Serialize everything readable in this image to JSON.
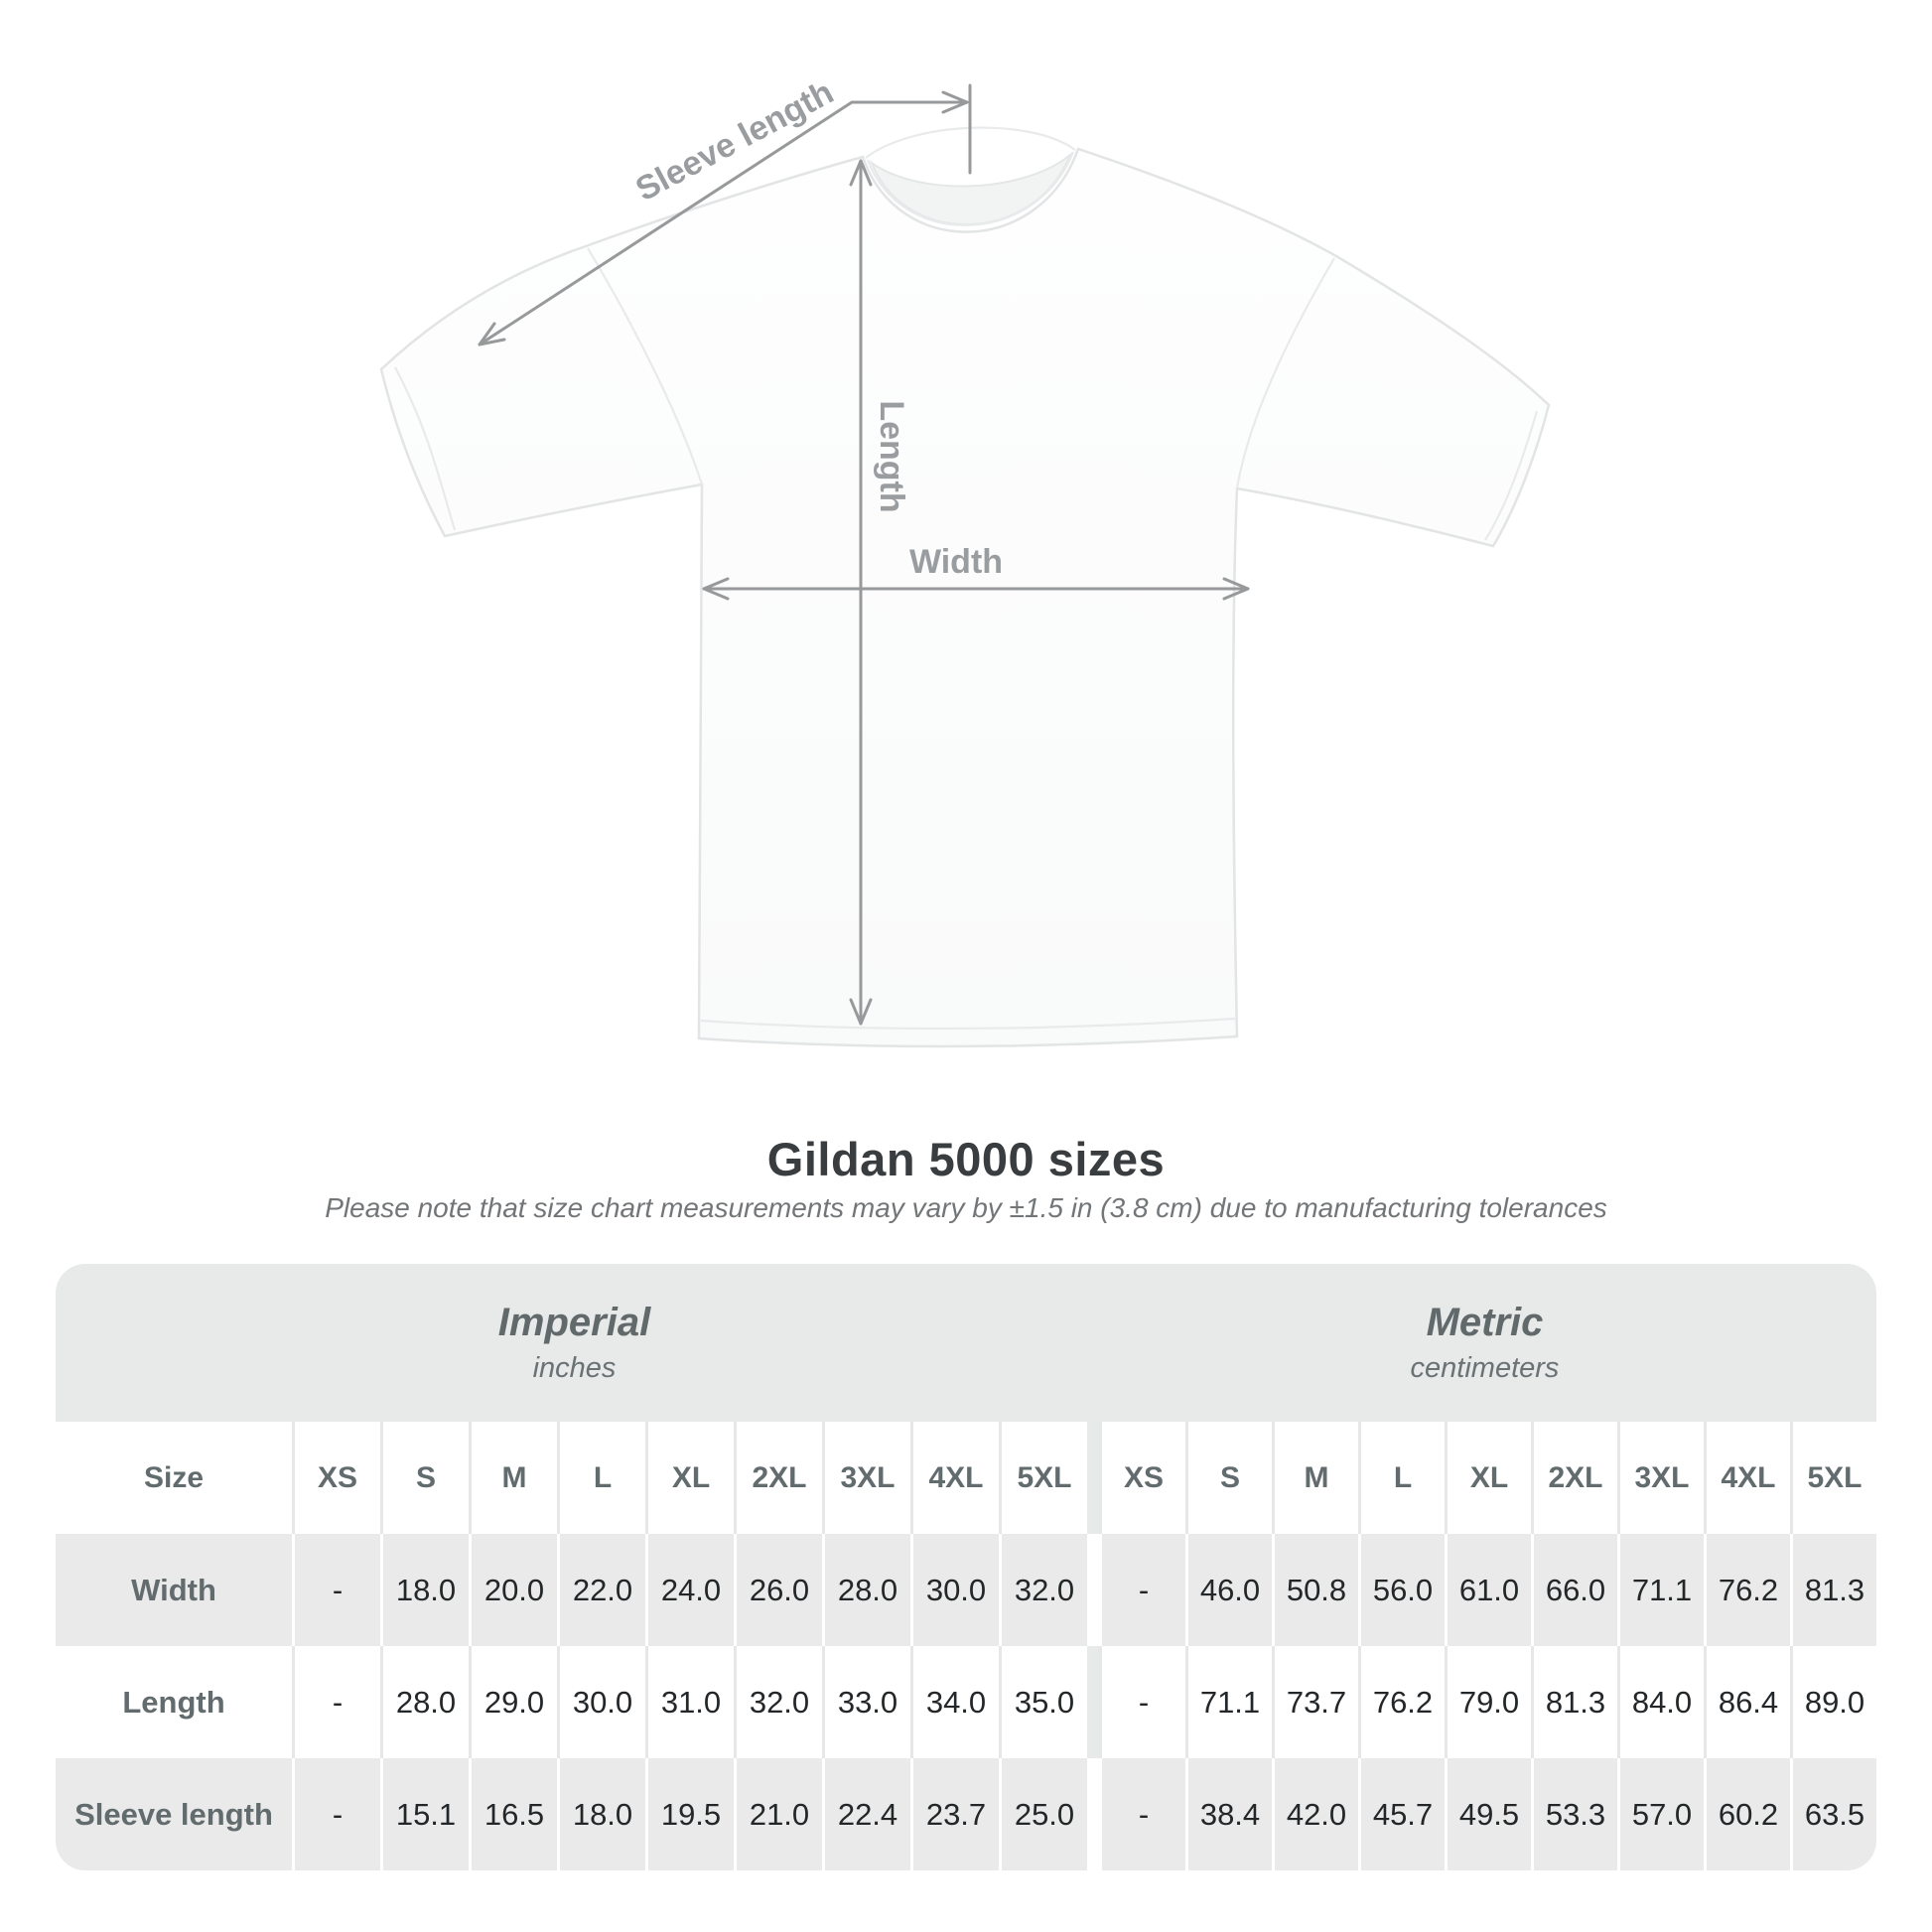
{
  "diagram": {
    "alt": "white crew-neck t-shirt front view with measurement arrows",
    "labels": {
      "sleeve_length": "Sleeve length",
      "length": "Length",
      "width": "Width"
    },
    "annotation_color": "#97999b"
  },
  "header": {
    "title": "Gildan 5000 sizes",
    "subtitle": "Please note that size chart measurements may vary by ±1.5 in (3.8 cm) due to manufacturing tolerances"
  },
  "chart_data": {
    "type": "table",
    "title": "Gildan 5000 sizes",
    "corner_header": "Size",
    "sections": [
      {
        "label": "Imperial",
        "units": "inches"
      },
      {
        "label": "Metric",
        "units": "centimeters"
      }
    ],
    "size_columns": [
      "XS",
      "S",
      "M",
      "L",
      "XL",
      "2XL",
      "3XL",
      "4XL",
      "5XL"
    ],
    "rows": [
      {
        "label": "Width",
        "imperial": [
          "-",
          "18.0",
          "20.0",
          "22.0",
          "24.0",
          "26.0",
          "28.0",
          "30.0",
          "32.0"
        ],
        "metric": [
          "-",
          "46.0",
          "50.8",
          "56.0",
          "61.0",
          "66.0",
          "71.1",
          "76.2",
          "81.3"
        ]
      },
      {
        "label": "Length",
        "imperial": [
          "-",
          "28.0",
          "29.0",
          "30.0",
          "31.0",
          "32.0",
          "33.0",
          "34.0",
          "35.0"
        ],
        "metric": [
          "-",
          "71.1",
          "73.7",
          "76.2",
          "79.0",
          "81.3",
          "84.0",
          "86.4",
          "89.0"
        ]
      },
      {
        "label": "Sleeve length",
        "imperial": [
          "-",
          "15.1",
          "16.5",
          "18.0",
          "19.5",
          "21.0",
          "22.4",
          "23.7",
          "25.0"
        ],
        "metric": [
          "-",
          "38.4",
          "42.0",
          "45.7",
          "49.5",
          "53.3",
          "57.0",
          "60.2",
          "63.5"
        ]
      }
    ]
  },
  "colors": {
    "band_gray": "#e8e9e9",
    "row_gray": "#e9eae9",
    "header_text": "#626b6d",
    "value_text": "#242729",
    "title_text": "#3a3d3f",
    "subtitle_text": "#737678",
    "separator_on_white": "#e6e7e7",
    "separator_on_gray": "#ffffff"
  }
}
